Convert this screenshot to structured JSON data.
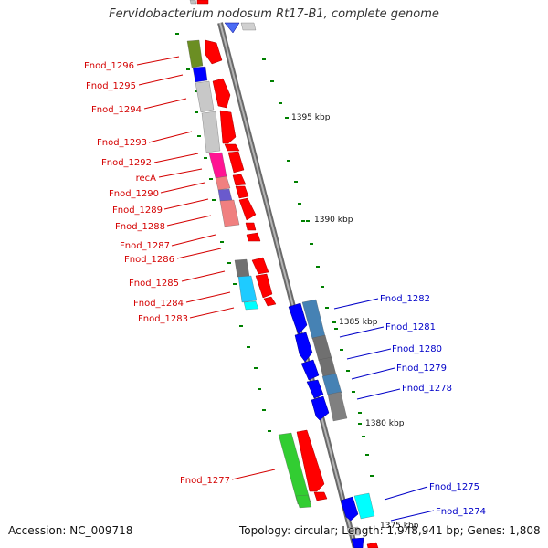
{
  "title": "Fervidobacterium nodosum Rt17-B1, complete genome",
  "accession": "Accession: NC_009718",
  "topology": "Topology: circular; Length: 1,948,941 bp; Genes: 1,808",
  "colors": {
    "forward_gene": "#ff0000",
    "reverse_gene": "#0000ff",
    "forward_label": "#d40000",
    "reverse_label": "#0000c8",
    "backbone": "#808080",
    "tick": "#008000"
  },
  "tick_labels": [
    "1395 kbp",
    "1390 kbp",
    "1385 kbp",
    "1380 kbp",
    "1375 kbp"
  ],
  "forward_labels": [
    "Fnod_1296",
    "Fnod_1295",
    "Fnod_1294",
    "Fnod_1293",
    "Fnod_1292",
    "recA",
    "Fnod_1290",
    "Fnod_1289",
    "Fnod_1288",
    "Fnod_1287",
    "Fnod_1286",
    "Fnod_1285",
    "Fnod_1284",
    "Fnod_1283",
    "Fnod_1277"
  ],
  "reverse_labels": [
    "Fnod_1282",
    "Fnod_1281",
    "Fnod_1280",
    "Fnod_1279",
    "Fnod_1278",
    "Fnod_1275",
    "Fnod_1274"
  ]
}
